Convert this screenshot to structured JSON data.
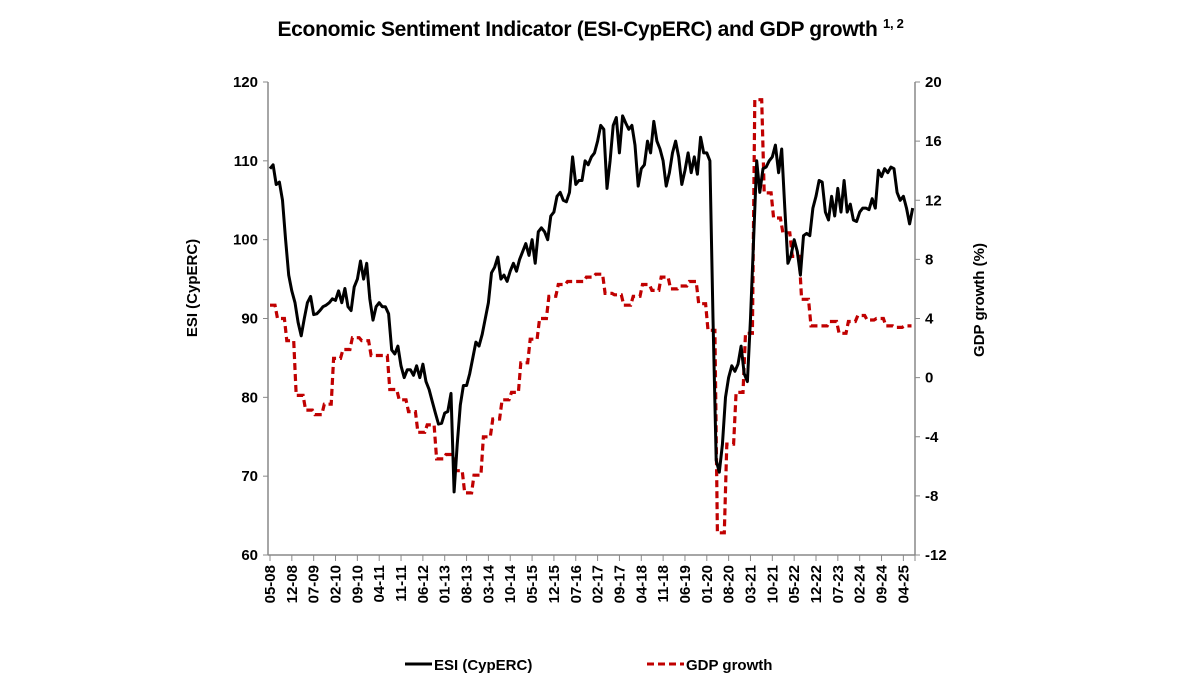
{
  "chart_data": {
    "type": "line",
    "title": "Economic Sentiment Indicator (ESI-CypERC) and GDP growth",
    "title_superscript": "1, 2",
    "ylabel_left": "ESI (CypERC)",
    "ylabel_right": "GDP growth (%)",
    "ylim_left": [
      60,
      120
    ],
    "yticks_left": [
      60,
      70,
      80,
      90,
      100,
      110,
      120
    ],
    "ylim_right": [
      -12,
      20
    ],
    "yticks_right": [
      -12,
      -8,
      -4,
      0,
      4,
      8,
      12,
      16,
      20
    ],
    "x_start": "05-08",
    "x_tick_labels": [
      "05-08",
      "12-08",
      "07-09",
      "02-10",
      "09-10",
      "04-11",
      "11-11",
      "06-12",
      "01-13",
      "08-13",
      "03-14",
      "10-14",
      "05-15",
      "12-15",
      "07-16",
      "02-17",
      "09-17",
      "04-18",
      "11-18",
      "06-19",
      "01-20",
      "08-20",
      "03-21",
      "10-21",
      "05-22",
      "12-22",
      "07-23",
      "02-24",
      "09-24",
      "04-25"
    ],
    "grid": false,
    "legend_placement": "bottom",
    "series": [
      {
        "name": "ESI (CypERC)",
        "axis": "left",
        "frequency": "monthly",
        "color": "#000000",
        "style": "solid",
        "values": [
          109,
          109.5,
          107,
          107.3,
          105,
          100,
          95.5,
          93.5,
          92,
          89.5,
          87.8,
          90,
          92,
          92.8,
          90.5,
          90.6,
          91,
          91.5,
          91.7,
          92,
          92.5,
          92.3,
          93.5,
          92,
          93.8,
          91.5,
          91,
          94,
          95,
          97.3,
          95,
          97,
          92.5,
          89.8,
          91.5,
          92,
          91.5,
          91.5,
          90.6,
          86,
          85.5,
          86.5,
          84,
          82.5,
          83.5,
          83.5,
          82.8,
          84,
          82.5,
          84.2,
          82,
          81,
          79.5,
          78,
          76.6,
          76.7,
          78,
          78.2,
          80.5,
          68,
          74,
          79,
          81.5,
          81.5,
          83,
          85,
          87,
          86.5,
          88,
          90,
          92,
          95.8,
          96.5,
          97.8,
          95,
          95.5,
          94.7,
          96,
          97,
          96,
          97.5,
          98.5,
          99.5,
          98,
          100,
          97,
          101,
          101.5,
          101,
          100,
          103,
          103.5,
          105.5,
          106,
          105,
          104.8,
          106,
          110.5,
          107,
          107.5,
          107.5,
          110,
          109.5,
          110.5,
          111,
          112.5,
          114.5,
          114,
          106.5,
          110,
          114.5,
          115.5,
          111,
          115.7,
          114.8,
          114,
          114.5,
          112,
          106.8,
          109,
          109.5,
          112.5,
          111,
          115,
          112.5,
          111.5,
          110,
          106.8,
          108.5,
          111,
          112.5,
          110.5,
          107,
          108.8,
          111,
          108.5,
          110.5,
          108.3,
          113,
          111,
          111,
          110,
          90,
          72,
          70.5,
          74,
          80,
          82.5,
          84,
          83.3,
          84.2,
          86.5,
          83,
          82,
          90,
          100,
          110,
          106,
          109,
          109.2,
          110,
          110.5,
          112,
          108.5,
          111.5,
          104,
          97,
          98,
          100,
          98.5,
          95.5,
          100.5,
          100.8,
          100.5,
          104,
          105.5,
          107.5,
          107.3,
          103.5,
          102.5,
          105.5,
          103,
          106.5,
          103.5,
          107.5,
          103.5,
          104.5,
          102.5,
          102.3,
          103.5,
          104,
          104,
          103.8,
          105.2,
          104,
          108.8,
          108,
          109,
          108.5,
          109.2,
          109,
          106,
          105,
          105.5,
          104,
          102,
          104
        ]
      },
      {
        "name": "GDP growth",
        "axis": "right",
        "frequency": "quarterly",
        "first_period": "Q2-2008",
        "color": "#c00000",
        "style": "dashed",
        "values": [
          4.9,
          4,
          2.5,
          -1.2,
          -2.2,
          -2.5,
          -1.8,
          1.3,
          1.9,
          2.7,
          2.5,
          1.5,
          1.5,
          -0.8,
          -1.5,
          -2.3,
          -3.7,
          -3.2,
          -5.5,
          -5.2,
          -6.3,
          -7.8,
          -6.6,
          -4,
          -2.8,
          -1.5,
          -1.0,
          1.0,
          2.6,
          4.0,
          5.5,
          6.3,
          6.5,
          6.5,
          6.8,
          7.0,
          5.7,
          5.6,
          4.9,
          5.5,
          6.3,
          5.9,
          6.8,
          6.0,
          6.2,
          6.5,
          5.0,
          3.2,
          -10.5,
          -4.5,
          -1.0,
          3.0,
          18.8,
          12.5,
          10.8,
          9.8,
          8.2,
          5.3,
          3.5,
          3.5,
          3.8,
          3.0,
          3.8,
          4.2,
          3.9,
          4.0,
          3.5,
          3.4,
          3.5
        ]
      }
    ]
  }
}
